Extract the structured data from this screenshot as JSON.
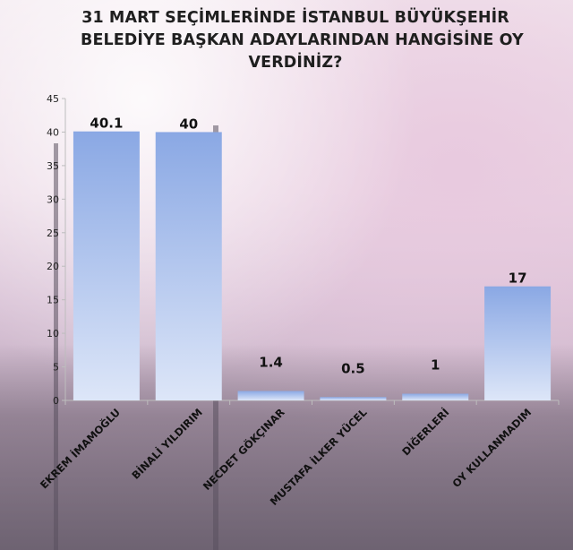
{
  "chart_data": {
    "type": "bar",
    "title_lines": [
      "31 MART SEÇİMLERİNDE İSTANBUL BÜYÜKŞEHİR",
      "BELEDİYE BAŞKAN ADAYLARINDAN HANGİSİNE OY",
      "VERDİNİZ?"
    ],
    "categories": [
      "EKREM İMAMOĞLU",
      "BİNALİ YILDIRIM",
      "NECDET GÖKÇINAR",
      "MUSTAFA İLKER YÜCEL",
      "DİĞERLERİ",
      "OY KULLANMADIM"
    ],
    "values": [
      40.1,
      40,
      1.4,
      0.5,
      1,
      17
    ],
    "data_labels": [
      "40.1",
      "40",
      "1.4",
      "0.5",
      "1",
      "17"
    ],
    "ylim": [
      0,
      45
    ],
    "yticks": [
      0,
      5,
      10,
      15,
      20,
      25,
      30,
      35,
      40,
      45
    ],
    "xlabel": "",
    "ylabel": "",
    "grid": false,
    "legend": "none",
    "colors": {
      "bar_top": "#8aa8e4",
      "bar_bottom": "#dde6f8",
      "axis": "#bdbdbd"
    }
  }
}
